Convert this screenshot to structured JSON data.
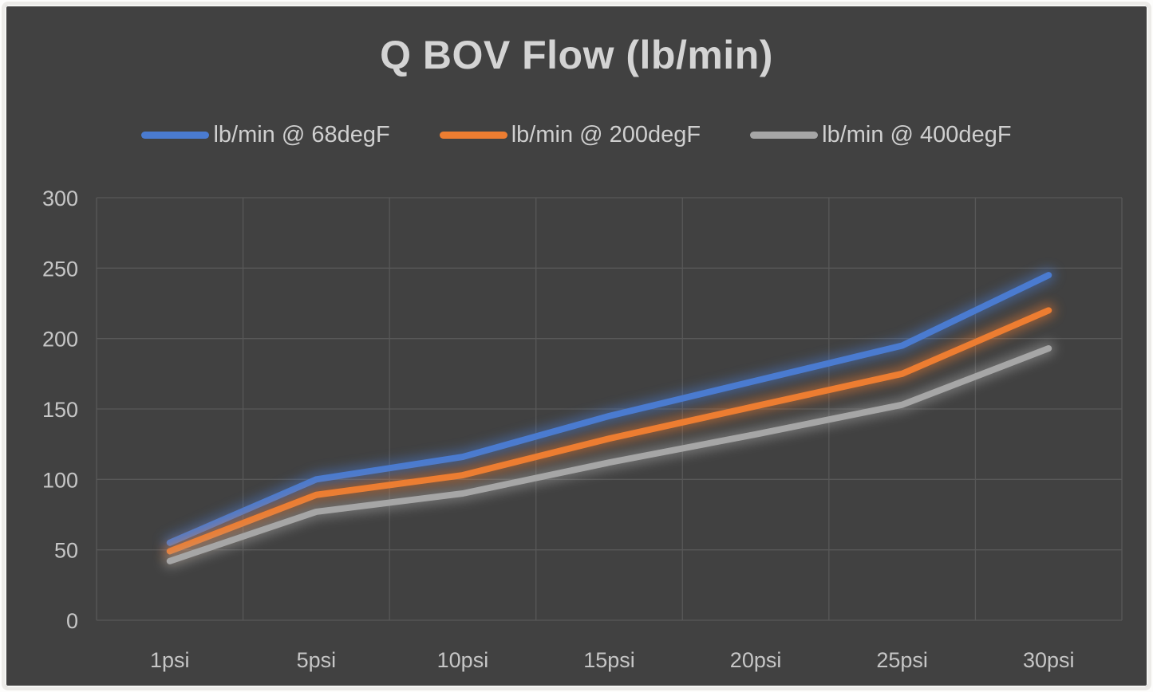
{
  "frame": {
    "background_color": "#414141",
    "border_color": "#ecebe8"
  },
  "chart_data": {
    "type": "line",
    "title": "Q BOV Flow (lb/min)",
    "xlabel": "",
    "ylabel": "",
    "categories": [
      "1psi",
      "5psi",
      "10psi",
      "15psi",
      "20psi",
      "25psi",
      "30psi"
    ],
    "series": [
      {
        "name": "lb/min @ 68degF",
        "color": "#4a7bd0",
        "values": [
          55,
          100,
          116,
          145,
          170,
          195,
          245
        ]
      },
      {
        "name": "lb/min @ 200degF",
        "color": "#ed7d31",
        "values": [
          49,
          89,
          103,
          129,
          152,
          175,
          220
        ]
      },
      {
        "name": "lb/min @ 400degF",
        "color": "#a6a6a6",
        "values": [
          42,
          77,
          90,
          112,
          132,
          153,
          193
        ]
      }
    ],
    "ylim": [
      0,
      300
    ],
    "yticks": [
      0,
      50,
      100,
      150,
      200,
      250,
      300
    ],
    "grid": true,
    "legend_position": "top",
    "gridline_color": "#585858",
    "axis_text_color": "#c6c6c6",
    "line_width": 8,
    "glow_effect": true
  }
}
